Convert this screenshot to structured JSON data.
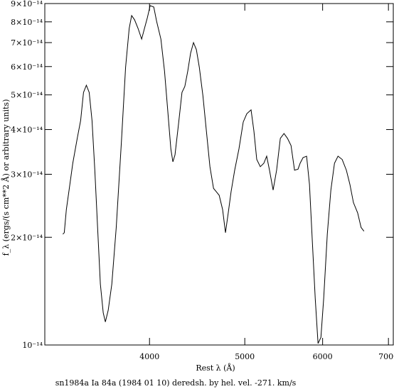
{
  "chart_data": {
    "type": "line",
    "title": "sn1984a Ia 84a (1984 01 10) deredsh. by hel. vel.  -271. km/s",
    "xlabel": "Rest λ (Å)",
    "ylabel": "f_λ (ergs/(s cm**2 Å) or arbitrary units)",
    "xlog": true,
    "ylog": true,
    "grid": false,
    "xlim": [
      3130,
      7080
    ],
    "ylim": [
      1e-14,
      9e-14
    ],
    "xticks": [
      4000,
      5000,
      6000,
      7000
    ],
    "yticks": [
      {
        "value": 1e-14,
        "label": "10⁻¹⁴"
      },
      {
        "value": 2e-14,
        "label": "2×10⁻¹⁴"
      },
      {
        "value": 3e-14,
        "label": "3×10⁻¹⁴"
      },
      {
        "value": 4e-14,
        "label": "4×10⁻¹⁴"
      },
      {
        "value": 5e-14,
        "label": "5×10⁻¹⁴"
      },
      {
        "value": 6e-14,
        "label": "6×10⁻¹⁴"
      },
      {
        "value": 7e-14,
        "label": "7×10⁻¹⁴"
      },
      {
        "value": 8e-14,
        "label": "8×10⁻¹⁴"
      },
      {
        "value": 9e-14,
        "label": "9×10⁻¹⁴"
      }
    ],
    "series": [
      {
        "color": "#000000",
        "x": [
          3265,
          3276,
          3292,
          3315,
          3342,
          3377,
          3404,
          3427,
          3450,
          3473,
          3496,
          3519,
          3542,
          3565,
          3589,
          3607,
          3631,
          3662,
          3700,
          3745,
          3782,
          3814,
          3836,
          3862,
          3894,
          3927,
          3953,
          3980,
          4006,
          4040,
          4067,
          4108,
          4143,
          4177,
          4205,
          4225,
          4246,
          4281,
          4316,
          4345,
          4375,
          4404,
          4434,
          4464,
          4495,
          4533,
          4570,
          4608,
          4647,
          4678,
          4709,
          4747,
          4779,
          4810,
          4842,
          4883,
          4932,
          4982,
          5024,
          5074,
          5108,
          5142,
          5185,
          5228,
          5263,
          5298,
          5343,
          5387,
          5434,
          5481,
          5526,
          5572,
          5618,
          5664,
          5692,
          5731,
          5779,
          5818,
          5857,
          5897,
          5936,
          5976,
          6015,
          6066,
          6117,
          6169,
          6220,
          6281,
          6343,
          6396,
          6449,
          6513,
          6566,
          6610
        ],
        "values": [
          2.04e-14,
          2.06e-14,
          2.39e-14,
          2.74e-14,
          3.22e-14,
          3.78e-14,
          4.24e-14,
          5.08e-14,
          5.32e-14,
          5.08e-14,
          4.24e-14,
          3.08e-14,
          2.13e-14,
          1.48e-14,
          1.23e-14,
          1.16e-14,
          1.25e-14,
          1.48e-14,
          2.13e-14,
          3.69e-14,
          5.97e-14,
          7.67e-14,
          8.33e-14,
          8.11e-14,
          7.67e-14,
          7.16e-14,
          7.67e-14,
          8.22e-14,
          8.88e-14,
          8.8e-14,
          8.03e-14,
          7.16e-14,
          5.83e-14,
          4.43e-14,
          3.53e-14,
          3.25e-14,
          3.4e-14,
          4.14e-14,
          5.08e-14,
          5.28e-14,
          5.83e-14,
          6.54e-14,
          7e-14,
          6.69e-14,
          5.97e-14,
          4.97e-14,
          3.96e-14,
          3.15e-14,
          2.74e-14,
          2.68e-14,
          2.62e-14,
          2.39e-14,
          2.06e-14,
          2.34e-14,
          2.68e-14,
          3.08e-14,
          3.53e-14,
          4.2e-14,
          4.43e-14,
          4.54e-14,
          3.96e-14,
          3.3e-14,
          3.15e-14,
          3.22e-14,
          3.37e-14,
          3.08e-14,
          2.71e-14,
          3.08e-14,
          3.78e-14,
          3.9e-14,
          3.78e-14,
          3.61e-14,
          3.08e-14,
          3.1e-14,
          3.22e-14,
          3.34e-14,
          3.37e-14,
          2.81e-14,
          1.95e-14,
          1.35e-14,
          1.01e-14,
          1.05e-14,
          1.35e-14,
          2.04e-14,
          2.71e-14,
          3.22e-14,
          3.37e-14,
          3.3e-14,
          3.08e-14,
          2.81e-14,
          2.5e-14,
          2.34e-14,
          2.13e-14,
          2.08e-14
        ]
      }
    ]
  }
}
